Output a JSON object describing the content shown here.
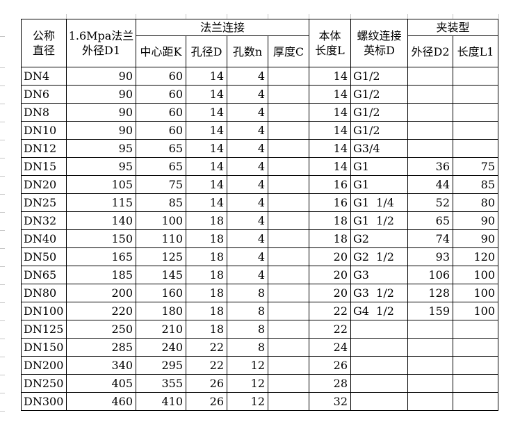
{
  "table": {
    "header": {
      "nominal_diameter": "公称\n直径",
      "flange_od": "1.6Mpa法兰\n外径D1",
      "flange_connection": "法兰连接",
      "center_distance": "中心距K",
      "hole_diameter": "孔径D",
      "hole_count": "孔数n",
      "thickness": "厚度C",
      "body_length": "本体\n长度L",
      "thread_connection": "螺纹连接\n英标D",
      "clamp_type": "夹装型",
      "clamp_od": "外径D2",
      "clamp_length": "长度L1"
    },
    "rows": [
      [
        "DN4",
        "90",
        "60",
        "14",
        "4",
        "",
        "14",
        "G1/2",
        "",
        ""
      ],
      [
        "DN6",
        "90",
        "60",
        "14",
        "4",
        "",
        "14",
        "G1/2",
        "",
        ""
      ],
      [
        "DN8",
        "90",
        "60",
        "14",
        "4",
        "",
        "14",
        "G1/2",
        "",
        ""
      ],
      [
        "DN10",
        "90",
        "60",
        "14",
        "4",
        "",
        "14",
        "G1/2",
        "",
        ""
      ],
      [
        "DN12",
        "95",
        "65",
        "14",
        "4",
        "",
        "14",
        "G3/4",
        "",
        ""
      ],
      [
        "DN15",
        "95",
        "65",
        "14",
        "4",
        "",
        "14",
        "G1",
        "36",
        "75"
      ],
      [
        "DN20",
        "105",
        "75",
        "14",
        "4",
        "",
        "16",
        "G1",
        "44",
        "85"
      ],
      [
        "DN25",
        "115",
        "85",
        "14",
        "4",
        "",
        "16",
        "G1  1/4",
        "52",
        "80"
      ],
      [
        "DN32",
        "140",
        "100",
        "18",
        "4",
        "",
        "18",
        "G1  1/2",
        "65",
        "90"
      ],
      [
        "DN40",
        "150",
        "110",
        "18",
        "4",
        "",
        "18",
        "G2",
        "74",
        "90"
      ],
      [
        "DN50",
        "165",
        "125",
        "18",
        "4",
        "",
        "20",
        "G2  1/2",
        "93",
        "120"
      ],
      [
        "DN65",
        "185",
        "145",
        "18",
        "4",
        "",
        "20",
        "G3",
        "106",
        "100"
      ],
      [
        "DN80",
        "200",
        "160",
        "18",
        "8",
        "",
        "20",
        "G3  1/2",
        "128",
        "100"
      ],
      [
        "DN100",
        "220",
        "180",
        "18",
        "8",
        "",
        "22",
        "G4  1/2",
        "159",
        "100"
      ],
      [
        "DN125",
        "250",
        "210",
        "18",
        "8",
        "",
        "22",
        "",
        "",
        ""
      ],
      [
        "DN150",
        "285",
        "240",
        "22",
        "8",
        "",
        "24",
        "",
        "",
        ""
      ],
      [
        "DN200",
        "340",
        "295",
        "22",
        "12",
        "",
        "26",
        "",
        "",
        ""
      ],
      [
        "DN250",
        "405",
        "355",
        "26",
        "12",
        "",
        "28",
        "",
        "",
        ""
      ],
      [
        "DN300",
        "460",
        "410",
        "26",
        "12",
        "",
        "32",
        "",
        "",
        ""
      ]
    ]
  }
}
